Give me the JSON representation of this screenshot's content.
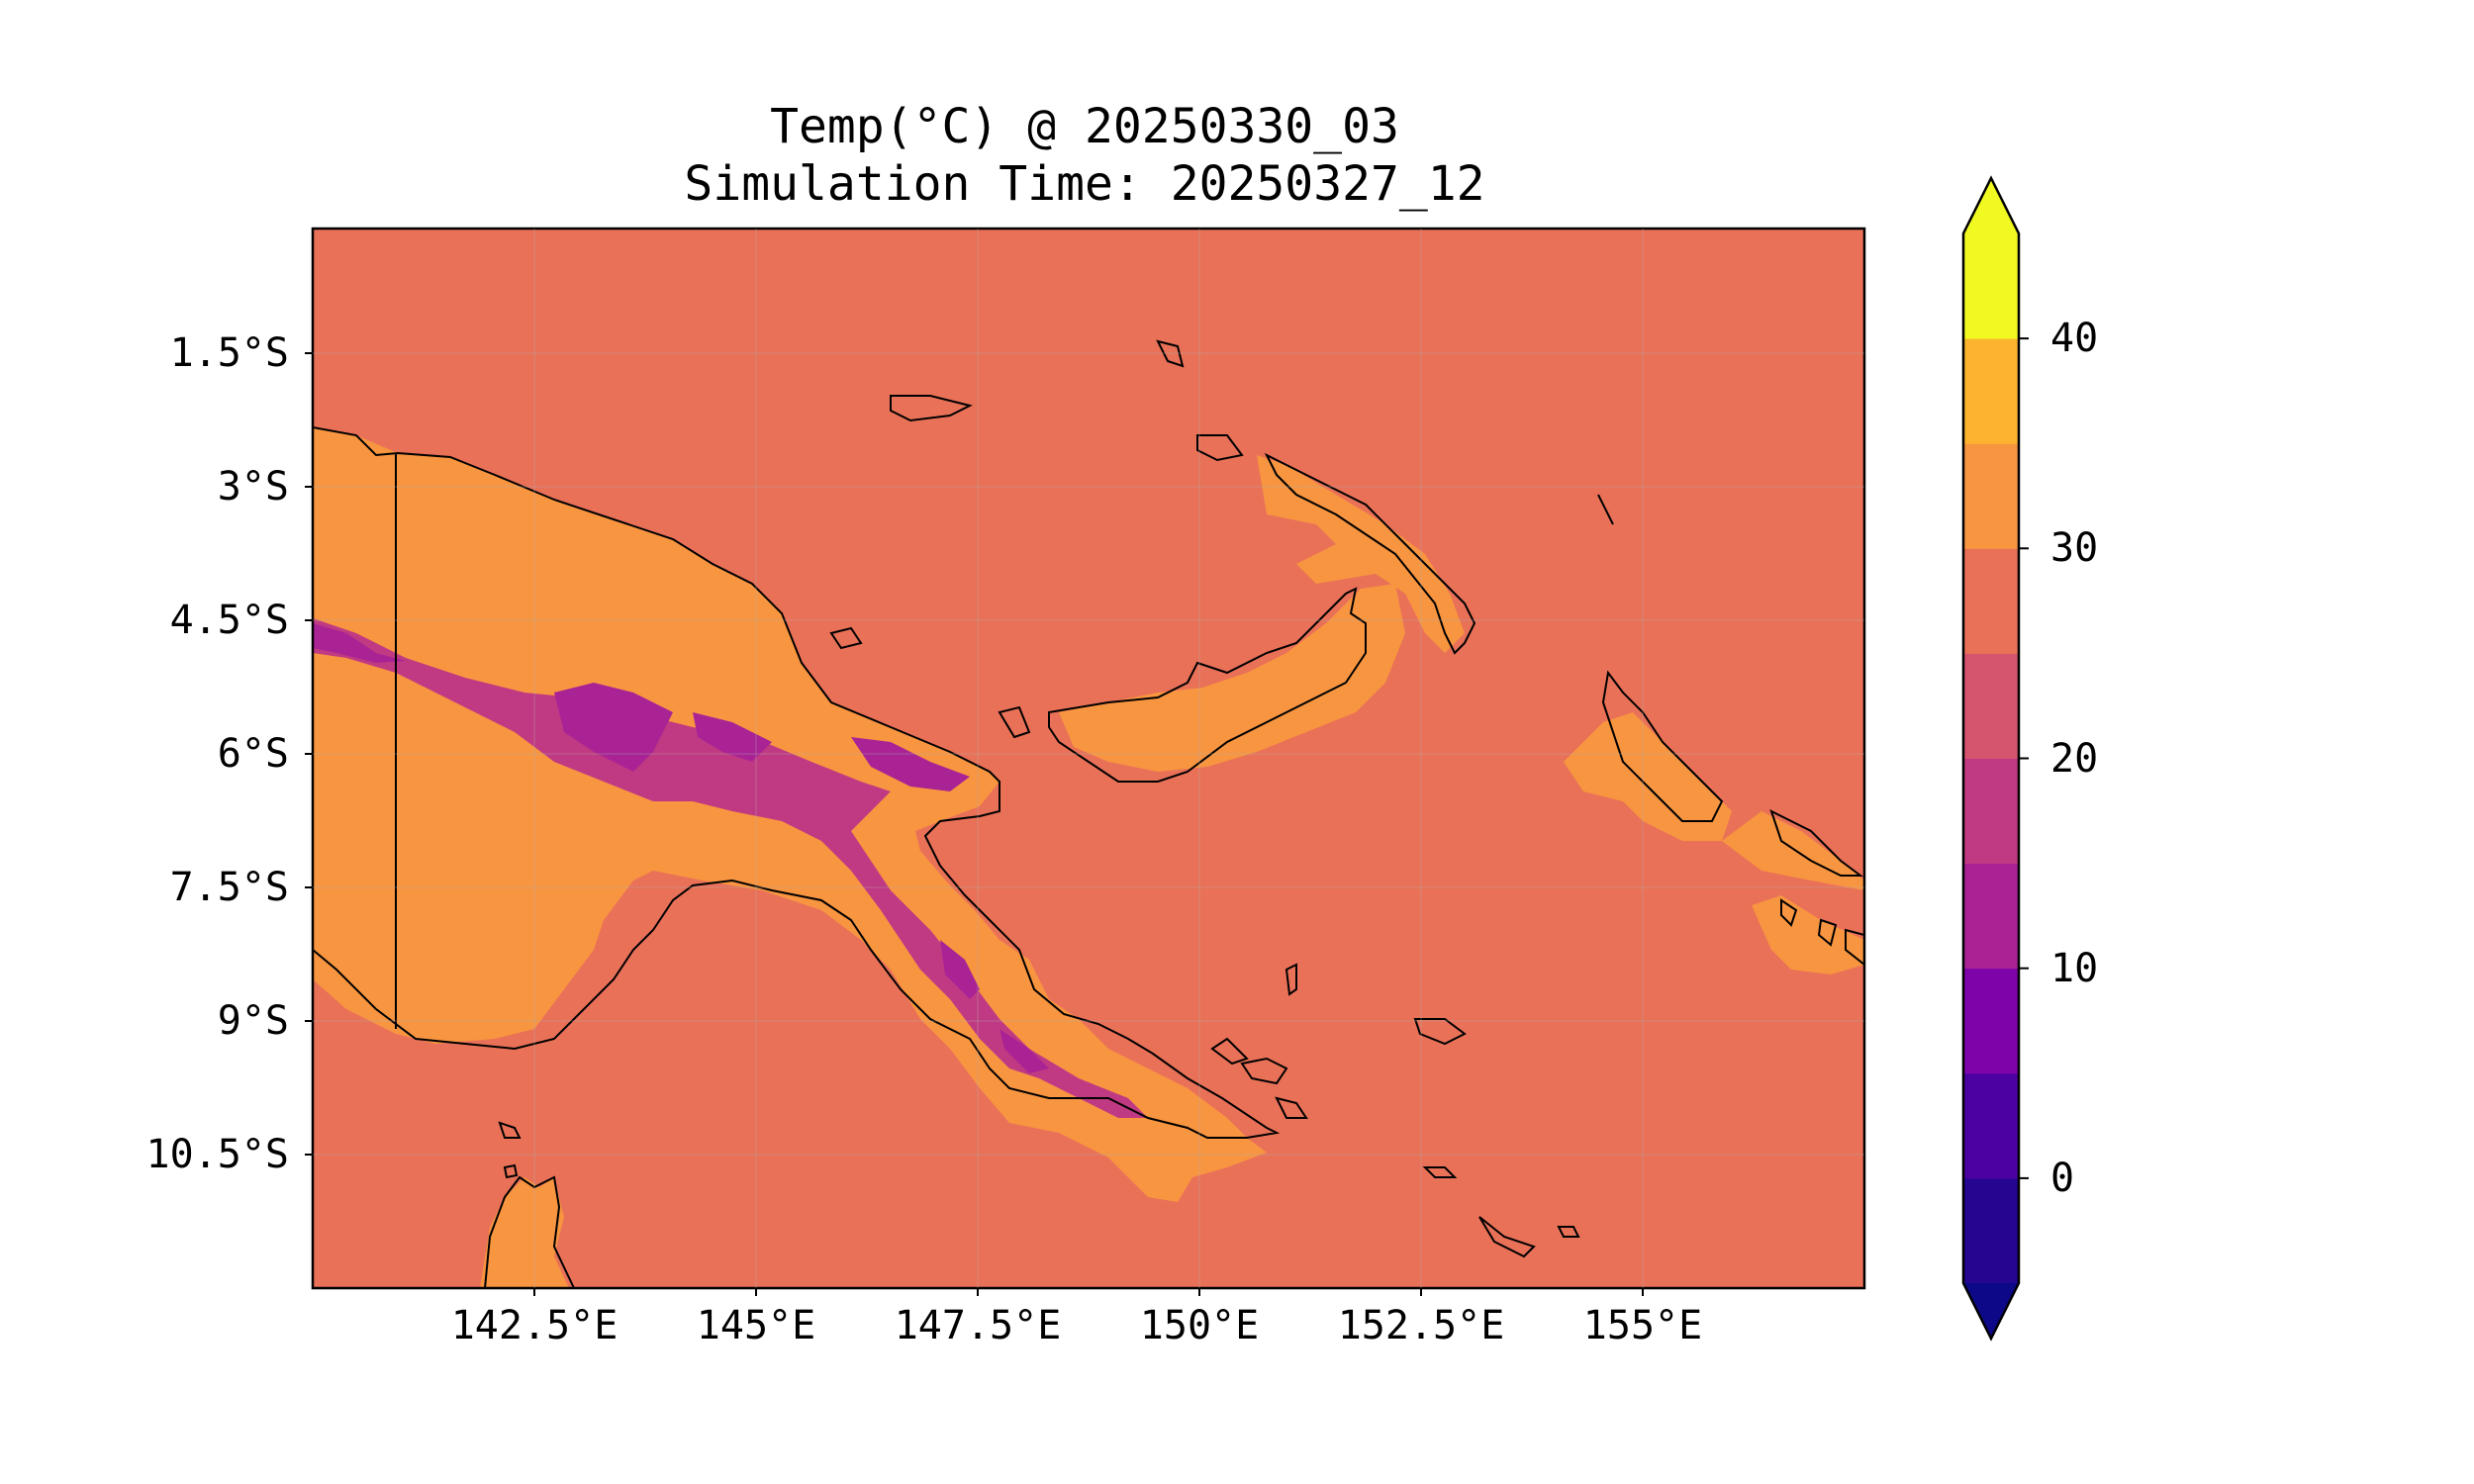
{
  "title_line1": "Temp(°C) @ 20250330_03",
  "title_line2": "Simulation Time: 20250327_12",
  "lat_ticks": [
    {
      "label": "1.5°S",
      "value": -1.5
    },
    {
      "label": "3°S",
      "value": -3
    },
    {
      "label": "4.5°S",
      "value": -4.5
    },
    {
      "label": "6°S",
      "value": -6
    },
    {
      "label": "7.5°S",
      "value": -7.5
    },
    {
      "label": "9°S",
      "value": -9
    },
    {
      "label": "10.5°S",
      "value": -10.5
    }
  ],
  "lon_ticks": [
    {
      "label": "142.5°E",
      "value": 142.5
    },
    {
      "label": "145°E",
      "value": 145
    },
    {
      "label": "147.5°E",
      "value": 147.5
    },
    {
      "label": "150°E",
      "value": 150
    },
    {
      "label": "152.5°E",
      "value": 152.5
    },
    {
      "label": "155°E",
      "value": 155
    }
  ],
  "map_extent": {
    "lon_min": 140.0,
    "lon_max": 157.5,
    "lat_min": -12.0,
    "lat_max": -0.1
  },
  "colorbar": {
    "ticks": [
      0,
      10,
      20,
      30,
      40
    ],
    "levels": [
      -5,
      0,
      5,
      10,
      15,
      20,
      25,
      30,
      35,
      40,
      45
    ],
    "colors": [
      "#240691",
      "#4c02a1",
      "#7e03a8",
      "#a92395",
      "#c03a83",
      "#d5546e",
      "#e97158",
      "#f89540",
      "#fdb32f",
      "#f0f921"
    ],
    "under_color": "#0d0887",
    "over_color": "#f0f921"
  },
  "colors": {
    "background_sea": "#e97158",
    "lowland": "#f89540",
    "highland": "#c03a83",
    "peak": "#a92395",
    "coastline": "#000000"
  }
}
